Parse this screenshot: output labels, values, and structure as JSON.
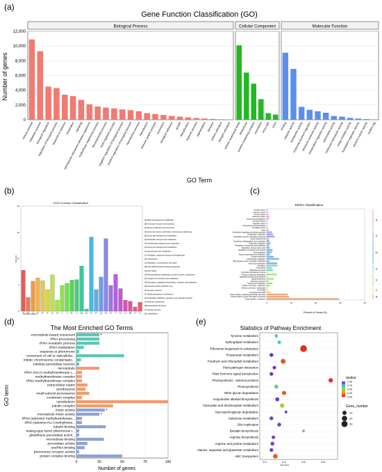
{
  "panels": {
    "a": "(a)",
    "b": "(b)",
    "c": "(c)",
    "d": "(d)",
    "e": "(e)"
  },
  "chart_data": [
    {
      "panel": "a",
      "type": "bar",
      "title": "Gene Function Classification (GO)",
      "xlabel": "GO Term",
      "ylabel": "Number of genes",
      "ylim": [
        0,
        12000
      ],
      "yticks": [
        "0",
        "2,000",
        "4,000",
        "6,000",
        "8,000",
        "10,000",
        "12,000"
      ],
      "grid": true,
      "facets": [
        {
          "name": "Biological Process",
          "color": "#f07b73",
          "categories": [
            "cellular process",
            "metabolic process",
            "biological regulation",
            "regulation of biological process",
            "response to stimulus",
            "localization",
            "signaling",
            "interspecies interaction between organisms",
            "multicellular organismal process",
            "developmental process",
            "multi-organism process",
            "negative regulation of biological process",
            "positive regulation of biological process",
            "reproductive process",
            "reproduction",
            "immune system process",
            "locomotion",
            "biological adhesion",
            "growth",
            "detoxification",
            "rhythmic process",
            "pigmentation",
            "behavior",
            "carbon utilization",
            "nitrogen utilization"
          ],
          "values": [
            10900,
            9300,
            4500,
            4300,
            3400,
            3200,
            2700,
            2100,
            1800,
            1650,
            1550,
            1400,
            1300,
            1150,
            900,
            780,
            650,
            520,
            420,
            330,
            240,
            170,
            120,
            70,
            40
          ]
        },
        {
          "name": "Cellular Component",
          "color": "#22b922",
          "categories": [
            "cellular anatomical entity",
            "intracellular",
            "protein-containing complex",
            "membrane",
            "virion part",
            "virion"
          ],
          "values": [
            10100,
            6400,
            4900,
            2800,
            900,
            700
          ]
        },
        {
          "name": "Molecular Function",
          "color": "#5a8ff0",
          "categories": [
            "binding",
            "catalytic activity",
            "transporter activity",
            "molecular function regulator",
            "structural molecule activity",
            "transcription regulator activity",
            "antioxidant activity",
            "molecular transducer activity",
            "cargo receptor activity",
            "translation regulator activity",
            "electron carrier activity",
            "protein tag"
          ],
          "values": [
            9100,
            6900,
            1750,
            1350,
            1150,
            950,
            500,
            420,
            260,
            160,
            90,
            40
          ]
        }
      ]
    },
    {
      "panel": "b",
      "type": "bar",
      "title": "KOG Function Classification",
      "xlabel": "KOG Function",
      "ylabel": "Percent",
      "ylim": [
        0,
        20
      ],
      "yticks": [
        "0",
        "5",
        "10",
        "15",
        "20"
      ],
      "categories": [
        "A",
        "B",
        "C",
        "D",
        "E",
        "F",
        "G",
        "H",
        "I",
        "J",
        "K",
        "L",
        "M",
        "N",
        "O",
        "P",
        "Q",
        "R",
        "S",
        "T",
        "U",
        "V",
        "W",
        "Y",
        "Z"
      ],
      "values": [
        7.8,
        2.6,
        5.7,
        6.3,
        5.8,
        4.1,
        6.9,
        2.1,
        4.9,
        5.3,
        5.9,
        6.0,
        8.6,
        0.4,
        14.1,
        4.1,
        6.5,
        13.8,
        4.9,
        7.0,
        4.3,
        2.1,
        1.9,
        0.8,
        1.7
      ],
      "colors": [
        "#e85a5a",
        "#eb7a4e",
        "#ef9a4a",
        "#f0b44a",
        "#e8c74a",
        "#d6d64a",
        "#c2e04a",
        "#a8e34a",
        "#8ee44a",
        "#70e04a",
        "#52d65a",
        "#45cf7a",
        "#3fc79b",
        "#3ec0bd",
        "#48b8dc",
        "#5aaee8",
        "#6e9de8",
        "#8a88e8",
        "#a072e6",
        "#b75fe0",
        "#c855d0",
        "#d652b8",
        "#e052a0",
        "#e85a88",
        "#ea6072"
      ],
      "legend": [
        "[A] RNA processing and modification",
        "[B] Chromatin structure and dynamics",
        "[C] Energy production and conversion",
        "[D] Cell cycle control, cell division, chromosome partitioning",
        "[E] Amino acid transport and metabolism",
        "[F] Nucleotide transport and metabolism",
        "[G] Carbohydrate transport and metabolism",
        "[H] Coenzyme transport and metabolism",
        "[I] Lipid transport and metabolism",
        "[J] Translation, ribosomal structure and biogenesis",
        "[K] Transcription",
        "[L] Replication, recombination and repair",
        "[M] Cell wall/membrane/envelope biogenesis",
        "[N] Cell motility",
        "[O] Posttranslational modification, protein turnover, chaperones",
        "[P] Inorganic ion transport and metabolism",
        "[Q] Secondary metabolites biosynthesis, transport and catabolism",
        "[R] General function prediction only",
        "[S] Function unknown",
        "[T] Signal transduction mechanisms",
        "[U] Intracellular trafficking, secretion, and vesicular transport",
        "[V] Defense mechanisms",
        "[W] Extracellular structures",
        "[Y] Nuclear structure",
        "[Z] Cytoskeleton"
      ]
    },
    {
      "panel": "c",
      "type": "bar",
      "orientation": "horizontal",
      "title": "KEGG Classification",
      "xlabel": "Percent of Genes (%)",
      "xlim": [
        0,
        40
      ],
      "xticks": [
        "0",
        "10",
        "20",
        "30",
        "40"
      ],
      "categories": [
        "Sensory system",
        "Nervous system",
        "Immune system",
        "Endocrine system",
        "Environmental adaptation",
        "Excretory system",
        "Digestive system",
        "Development and regeneration",
        "Circulatory system",
        "Aging",
        "Unclassified: signaling and cellular processes",
        "Unclassified: metabolism",
        "Unclassified: genetic information processing",
        "Poorly characterized",
        "Xenobiotics biodegradation and metabolism",
        "Nucleotide metabolism",
        "Metabolism of terpenoids and polyketides",
        "Metabolism of other amino acids",
        "Metabolism of cofactors and vitamins",
        "Lipid metabolism",
        "Glycan biosynthesis and metabolism",
        "Energy metabolism",
        "Carbohydrate metabolism",
        "Biosynthesis of other secondary metabolites",
        "Amino acid metabolism",
        "Translation",
        "Transcription",
        "Replication and repair",
        "Information processing in viruses",
        "Folding, sorting and degradation",
        "Signaling molecules and interaction",
        "Signal transduction",
        "Membrane transport",
        "Transport and catabolism",
        "Cellular community - eukaryotes",
        "Cellular community - prokaryotes",
        "Cell motility",
        "Cell growth and death",
        "Protein families: signaling and cellular processes",
        "Protein families: genetic information processing",
        "Protein families: metabolism"
      ],
      "values": [
        0.3,
        0.5,
        0.7,
        1.1,
        0.9,
        0.3,
        0.4,
        0.3,
        0.4,
        0.7,
        2.2,
        2.6,
        3.2,
        0.8,
        1.1,
        1.6,
        1.0,
        1.3,
        2.4,
        2.1,
        1.3,
        2.8,
        5.0,
        1.1,
        4.3,
        4.4,
        2.1,
        2.6,
        0.3,
        4.2,
        0.4,
        2.9,
        0.8,
        2.4,
        1.2,
        0.4,
        0.5,
        1.7,
        8.6,
        9.2,
        29.5
      ],
      "group_labels": [
        "H",
        "O",
        "M",
        "G",
        "E",
        "C",
        "B"
      ],
      "group_sizes": [
        10,
        4,
        11,
        4,
        6,
        3,
        3
      ],
      "group_colors": [
        "#e8a0e0",
        "#a0a0f0",
        "#7aaee8",
        "#7ad6c6",
        "#a6e07a",
        "#e8d87a",
        "#e8a880"
      ]
    },
    {
      "panel": "d",
      "type": "bar",
      "orientation": "horizontal",
      "title": "The Most Enriched GO Terms",
      "xlabel": "Number of genes",
      "ylabel": "GO term",
      "xlim": [
        0,
        100
      ],
      "xticks": [
        "0",
        "25",
        "50",
        "75",
        "100"
      ],
      "categories": [
        "microtubule-based movement",
        "rRNA processing",
        "rRNA metabolic process",
        "tRNA methylation",
        "response to pheromone",
        "movement of cell or subcellular...",
        "mitotic chromosome condensatio...",
        "tobolete peroxidase reaction",
        "microtubule",
        "tRNA (m1A) methyltransferase c...",
        "methyltransferase complex",
        "tRNA methyltransferase complex",
        "extracellular matrix",
        "preribosome",
        "small-subunit processome",
        "condensin complex",
        "cytoskeleton",
        "tubulin complex",
        "motor activity",
        "microtubule motor activity",
        "tRNA (adenine) methyltransferase...",
        "tRNA (adenine-N1-)-methyltrans...",
        "tubulin binding",
        "mating-type factor pheromone r...",
        "glutathione peroxidase activit...",
        "microtubule binding",
        "peroxidase activity",
        "snoRNA binding",
        "pheromone receptor activity",
        "protein complex binding"
      ],
      "values": [
        25,
        25,
        25,
        8,
        3,
        52,
        5,
        3,
        25,
        6,
        6,
        6,
        12,
        10,
        14,
        6,
        100,
        40,
        31,
        25,
        6,
        6,
        32,
        3,
        3,
        30,
        12,
        9,
        3,
        50
      ],
      "categories_group": [
        "BP",
        "BP",
        "BP",
        "BP",
        "BP",
        "BP",
        "BP",
        "BP",
        "CC",
        "CC",
        "CC",
        "CC",
        "CC",
        "CC",
        "CC",
        "CC",
        "CC",
        "CC",
        "MF",
        "MF",
        "MF",
        "MF",
        "MF",
        "MF",
        "MF",
        "MF",
        "MF",
        "MF",
        "MF",
        "MF"
      ],
      "group_colors": {
        "BP": "#5ec6b4",
        "CC": "#f29a6c",
        "MF": "#8ea2d2"
      },
      "significant": [
        "microtubule-based movement",
        "motor activity",
        "microtubule motor activity"
      ],
      "significance_mark": "*"
    },
    {
      "panel": "e",
      "type": "scatter",
      "title": "Statistics of Pathway Enrichment",
      "xlabel": "Rich Factor",
      "xlim": [
        0.15,
        0.95
      ],
      "xticks": [
        "0.2",
        "0.4",
        "0.6",
        "0.8"
      ],
      "categories": [
        "Tyrosine metabolism",
        "Sphingolipid metabolism",
        "Ribosome biogenesis in eukaryotes",
        "Propanoate metabolism",
        "Porphyrin and chlorophyll metabolism",
        "Plant-pathogen interaction",
        "Plant hormone signal transduction",
        "Photosynthesis - antenna proteins",
        "Photosynthesis",
        "Other glycan degradation",
        "Isoquinoline alkaloid biosynthesis",
        "Glyoxylate and dicarboxylate metabolism",
        "Glycosaminoglycan degradation",
        "Galactose metabolism",
        "DNA replication",
        "Betalain biosynthesis",
        "Arginine biosynthesis",
        "Arginine and proline metabolism",
        "Alanine, aspartate and glutamate metabolism",
        "ABC transporters"
      ],
      "x": [
        0.32,
        0.35,
        0.6,
        0.27,
        0.39,
        0.3,
        0.27,
        0.88,
        0.32,
        0.4,
        0.33,
        0.38,
        0.42,
        0.27,
        0.35,
        0.6,
        0.29,
        0.28,
        0.27,
        0.31
      ],
      "qvalue": [
        0.72,
        0.74,
        0.02,
        0.99,
        0.1,
        0.99,
        0.98,
        0.02,
        0.62,
        0.1,
        0.98,
        0.5,
        0.94,
        0.96,
        0.96,
        0.62,
        0.96,
        0.96,
        0.98,
        0.12
      ],
      "gene_number": [
        5,
        6,
        38,
        8,
        15,
        6,
        7,
        12,
        10,
        10,
        9,
        12,
        3,
        8,
        8,
        3,
        6,
        8,
        7,
        14
      ],
      "legend_color_title": "qvalue",
      "legend_color_ticks": [
        "1.00",
        "0.75",
        "0.50",
        "0.25",
        "0.00"
      ],
      "legend_size_title": "Gene_number",
      "legend_size_ticks": [
        "10",
        "20",
        "30"
      ]
    }
  ]
}
